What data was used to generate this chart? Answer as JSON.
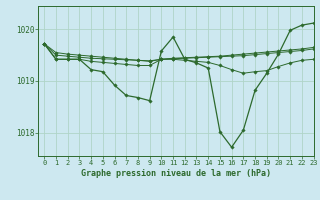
{
  "background_color": "#cde8f0",
  "grid_color": "#b0d4c8",
  "line_color": "#2d6a2d",
  "title": "Graphe pression niveau de la mer (hPa)",
  "ylim": [
    1017.55,
    1020.45
  ],
  "xlim": [
    -0.5,
    23
  ],
  "yticks": [
    1018,
    1019,
    1020
  ],
  "xticks": [
    0,
    1,
    2,
    3,
    4,
    5,
    6,
    7,
    8,
    9,
    10,
    11,
    12,
    13,
    14,
    15,
    16,
    17,
    18,
    19,
    20,
    21,
    22,
    23
  ],
  "series": {
    "main": [
      1019.72,
      1019.42,
      1019.42,
      1019.42,
      1019.22,
      1019.18,
      1018.92,
      1018.72,
      1018.68,
      1018.62,
      1019.58,
      1019.85,
      1019.42,
      1019.35,
      1019.25,
      1018.02,
      1017.72,
      1018.05,
      1018.82,
      1019.15,
      1019.52,
      1019.98,
      1020.08,
      1020.12
    ],
    "diag1": [
      1019.72,
      1019.55,
      1019.52,
      1019.5,
      1019.48,
      1019.46,
      1019.44,
      1019.42,
      1019.4,
      1019.38,
      1019.42,
      1019.44,
      1019.45,
      1019.46,
      1019.47,
      1019.48,
      1019.5,
      1019.52,
      1019.54,
      1019.56,
      1019.58,
      1019.6,
      1019.62,
      1019.65
    ],
    "diag2": [
      1019.72,
      1019.5,
      1019.48,
      1019.46,
      1019.44,
      1019.43,
      1019.42,
      1019.41,
      1019.4,
      1019.39,
      1019.42,
      1019.43,
      1019.44,
      1019.45,
      1019.46,
      1019.47,
      1019.48,
      1019.49,
      1019.51,
      1019.53,
      1019.55,
      1019.57,
      1019.59,
      1019.62
    ],
    "flat": [
      1019.72,
      1019.42,
      1019.42,
      1019.42,
      1019.38,
      1019.36,
      1019.34,
      1019.32,
      1019.3,
      1019.3,
      1019.42,
      1019.42,
      1019.4,
      1019.38,
      1019.36,
      1019.3,
      1019.22,
      1019.15,
      1019.18,
      1019.2,
      1019.28,
      1019.35,
      1019.4,
      1019.42
    ]
  }
}
